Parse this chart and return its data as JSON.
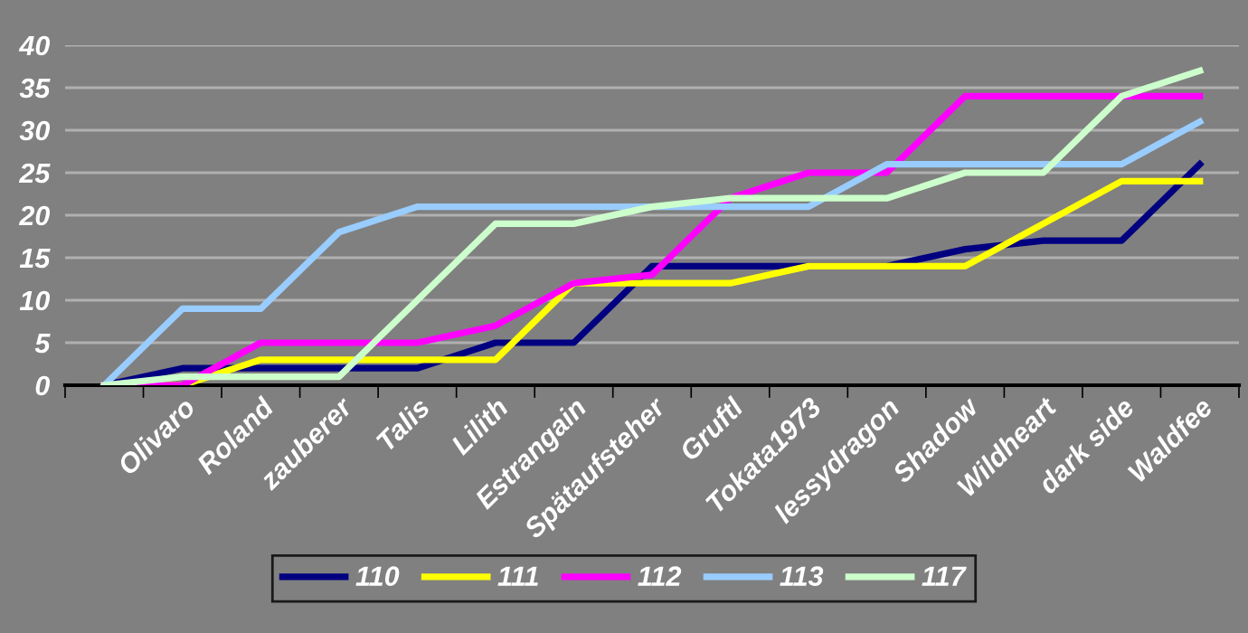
{
  "chart_data": {
    "type": "line",
    "categories": [
      null,
      "Olivaro",
      "Roland",
      "zauberer",
      "Talis",
      "Lilith",
      "Estrangain",
      "Spätaufsteher",
      "Gruftl",
      "Tokata1973",
      "lessydragon",
      "Shadow",
      "Wildheart",
      "dark side",
      "Waldfee"
    ],
    "series": [
      {
        "name": "110",
        "color": "#000080",
        "values": [
          0,
          2,
          2,
          2,
          2,
          5,
          5,
          14,
          14,
          14,
          14,
          16,
          17,
          17,
          26
        ]
      },
      {
        "name": "111",
        "color": "#ffff00",
        "values": [
          0,
          0,
          3,
          3,
          3,
          3,
          12,
          12,
          12,
          14,
          14,
          14,
          19,
          24,
          24
        ]
      },
      {
        "name": "112",
        "color": "#ff00ff",
        "values": [
          0,
          0,
          5,
          5,
          5,
          7,
          12,
          13,
          22,
          25,
          25,
          34,
          34,
          34,
          34
        ]
      },
      {
        "name": "113",
        "color": "#99ccff",
        "values": [
          0,
          9,
          9,
          18,
          21,
          21,
          21,
          21,
          21,
          21,
          26,
          26,
          26,
          26,
          31
        ]
      },
      {
        "name": "117",
        "color": "#ccffcc",
        "values": [
          0,
          1,
          1,
          1,
          10,
          19,
          19,
          21,
          22,
          22,
          22,
          25,
          25,
          34,
          37
        ]
      }
    ],
    "ylim": [
      0,
      40
    ],
    "yticks": [
      0,
      5,
      10,
      15,
      20,
      25,
      30,
      35,
      40
    ],
    "grid": "y",
    "legend": "bottom",
    "marker": "none",
    "line_style": "solid"
  }
}
